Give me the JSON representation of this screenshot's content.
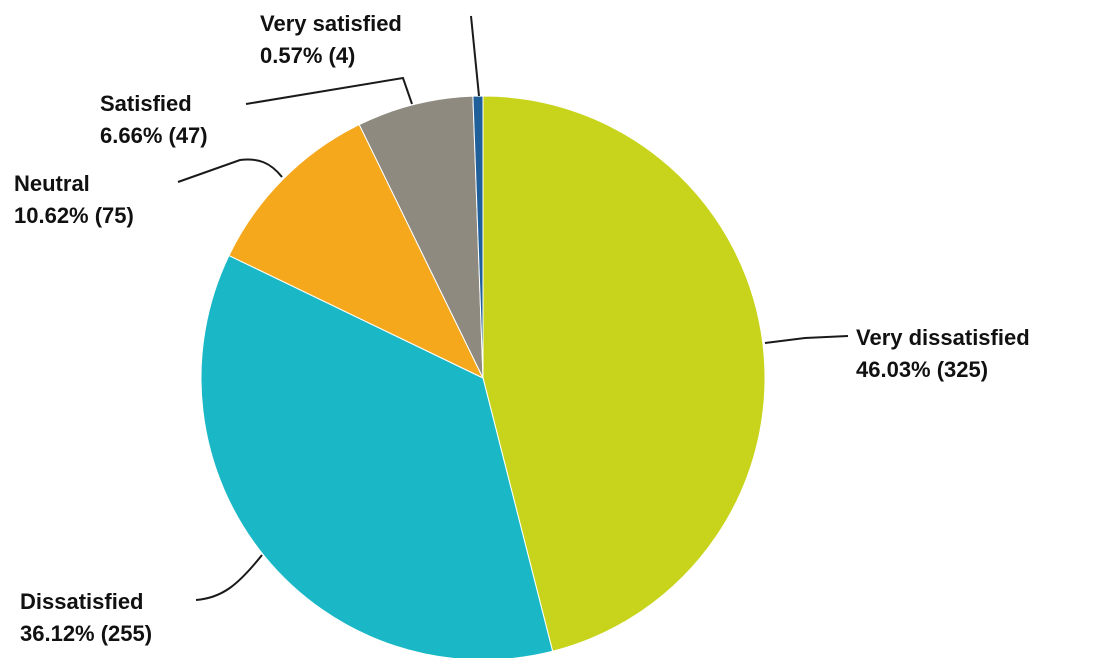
{
  "chart_data": {
    "type": "pie",
    "start_angle_deg": 0,
    "direction": "clockwise",
    "slices": [
      {
        "label": "Very dissatisfied",
        "percent": 46.03,
        "count": 325,
        "value_text": "46.03% (325)",
        "color": "#c8d41c"
      },
      {
        "label": "Dissatisfied",
        "percent": 36.12,
        "count": 255,
        "value_text": "36.12% (255)",
        "color": "#1ab8c6"
      },
      {
        "label": "Neutral",
        "percent": 10.62,
        "count": 75,
        "value_text": "10.62% (75)",
        "color": "#f5a81c"
      },
      {
        "label": "Satisfied",
        "percent": 6.66,
        "count": 47,
        "value_text": "6.66% (47)",
        "color": "#8e8a80"
      },
      {
        "label": "Very satisfied",
        "percent": 0.57,
        "count": 4,
        "value_text": "0.57% (4)",
        "color": "#1f5f9a"
      }
    ]
  }
}
